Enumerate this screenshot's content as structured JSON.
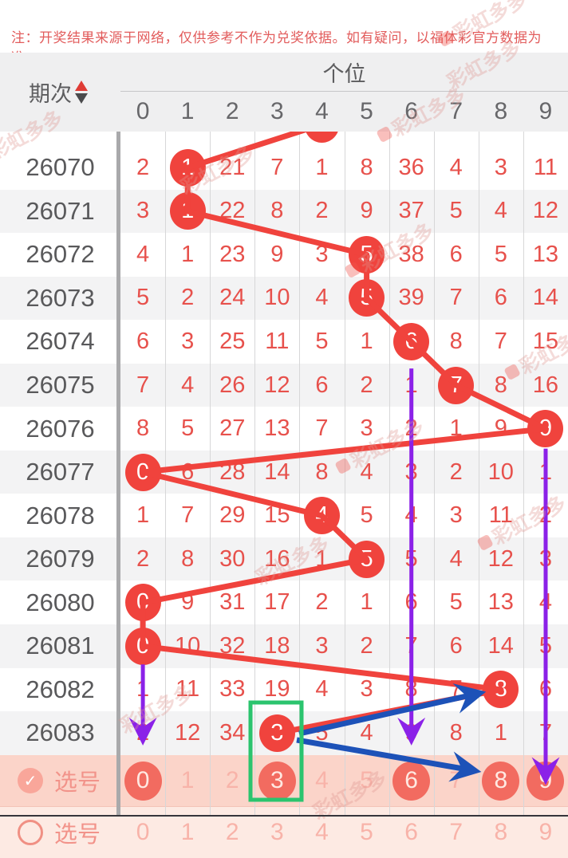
{
  "note": "注：开奖结果来源于网络，仅供参考不作为兑奖依据。如有疑问，以福体彩官方数据为准。",
  "watermark_text": "彩虹多多",
  "table": {
    "period_label": "期次",
    "group_label": "个位",
    "digit_headers": [
      "0",
      "1",
      "2",
      "3",
      "4",
      "5",
      "6",
      "7",
      "8",
      "9"
    ],
    "previous_row_hit_column": 4,
    "rows": [
      {
        "period": "26070",
        "values": [
          "2",
          "1",
          "21",
          "7",
          "1",
          "8",
          "36",
          "4",
          "3",
          "11"
        ],
        "hit": 1
      },
      {
        "period": "26071",
        "values": [
          "3",
          "1",
          "22",
          "8",
          "2",
          "9",
          "37",
          "5",
          "4",
          "12"
        ],
        "hit": 1
      },
      {
        "period": "26072",
        "values": [
          "4",
          "1",
          "23",
          "9",
          "3",
          "5",
          "38",
          "6",
          "5",
          "13"
        ],
        "hit": 5
      },
      {
        "period": "26073",
        "values": [
          "5",
          "2",
          "24",
          "10",
          "4",
          "5",
          "39",
          "7",
          "6",
          "14"
        ],
        "hit": 5
      },
      {
        "period": "26074",
        "values": [
          "6",
          "3",
          "25",
          "11",
          "5",
          "1",
          "6",
          "8",
          "7",
          "15"
        ],
        "hit": 6
      },
      {
        "period": "26075",
        "values": [
          "7",
          "4",
          "26",
          "12",
          "6",
          "2",
          "1",
          "7",
          "8",
          "16"
        ],
        "hit": 7
      },
      {
        "period": "26076",
        "values": [
          "8",
          "5",
          "27",
          "13",
          "7",
          "3",
          "2",
          "1",
          "9",
          "9"
        ],
        "hit": 9
      },
      {
        "period": "26077",
        "values": [
          "0",
          "6",
          "28",
          "14",
          "8",
          "4",
          "3",
          "2",
          "10",
          "1"
        ],
        "hit": 0
      },
      {
        "period": "26078",
        "values": [
          "1",
          "7",
          "29",
          "15",
          "4",
          "5",
          "4",
          "3",
          "11",
          "2"
        ],
        "hit": 4
      },
      {
        "period": "26079",
        "values": [
          "2",
          "8",
          "30",
          "16",
          "1",
          "5",
          "5",
          "4",
          "12",
          "3"
        ],
        "hit": 5
      },
      {
        "period": "26080",
        "values": [
          "0",
          "9",
          "31",
          "17",
          "2",
          "1",
          "6",
          "5",
          "13",
          "4"
        ],
        "hit": 0
      },
      {
        "period": "26081",
        "values": [
          "0",
          "10",
          "32",
          "18",
          "3",
          "2",
          "7",
          "6",
          "14",
          "5"
        ],
        "hit": 0
      },
      {
        "period": "26082",
        "values": [
          "1",
          "11",
          "33",
          "19",
          "4",
          "3",
          "8",
          "7",
          "8",
          "6"
        ],
        "hit": 8
      },
      {
        "period": "26083",
        "values": [
          "2",
          "12",
          "34",
          "3",
          "5",
          "4",
          "9",
          "8",
          "1",
          "7"
        ],
        "hit": 3
      }
    ]
  },
  "select_rows": [
    {
      "label": "选号",
      "checked": true,
      "check_glyph": "✓",
      "digits": [
        "0",
        "1",
        "2",
        "3",
        "4",
        "5",
        "6",
        "7",
        "8",
        "9"
      ],
      "selected": [
        0,
        3,
        6,
        8,
        9
      ]
    },
    {
      "label": "选号",
      "checked": false,
      "check_glyph": "",
      "digits": [
        "0",
        "1",
        "2",
        "3",
        "4",
        "5",
        "6",
        "7",
        "8",
        "9"
      ],
      "selected": []
    }
  ],
  "annotations": {
    "trend_color": "#f0433d",
    "purple_color": "#8b21e8",
    "blue_color": "#1d52b8",
    "green_color": "#2bc46e",
    "purple_arrows": [
      {
        "column": 0,
        "from_row": "26081",
        "to_row": "26083"
      },
      {
        "column": 6,
        "from_row": "26075",
        "to_row": "26083"
      },
      {
        "column": 9,
        "from_row": "26076",
        "to_row": "select"
      }
    ],
    "blue_arrows": [
      {
        "from": "26083 col 3",
        "to": "26082 col 8"
      },
      {
        "from": "26083 col 3",
        "to": "select col 8"
      }
    ],
    "green_box": {
      "column": 3,
      "rows": [
        "26083",
        "select"
      ]
    }
  }
}
